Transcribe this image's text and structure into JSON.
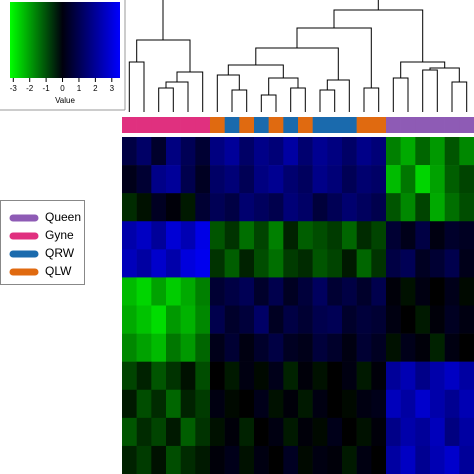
{
  "chart_data": {
    "type": "heatmap",
    "colorbar": {
      "label": "Value",
      "xlim": [
        -3.2,
        3.5
      ],
      "xticks": [
        -3,
        -2,
        -1,
        0,
        1,
        2,
        3
      ],
      "low_color": "#00ff00",
      "mid_color": "#000000",
      "high_color": "#0000ff"
    },
    "legend": [
      {
        "name": "Queen",
        "color": "#8e5bb5"
      },
      {
        "name": "Gyne",
        "color": "#e0307f"
      },
      {
        "name": "QRW",
        "color": "#1a6aad"
      },
      {
        "name": "QLW",
        "color": "#e06a10"
      }
    ],
    "column_groups": [
      1,
      1,
      1,
      1,
      1,
      1,
      3,
      2,
      3,
      2,
      3,
      2,
      3,
      2,
      2,
      2,
      3,
      3,
      0,
      0,
      0,
      0,
      0,
      0
    ],
    "values": [
      [
        0.8,
        1.2,
        0.5,
        1.5,
        1.0,
        0.6,
        1.5,
        1.8,
        1.2,
        1.6,
        1.4,
        1.9,
        1.3,
        1.7,
        1.5,
        1.2,
        1.6,
        1.4,
        -1.5,
        -2.0,
        -1.2,
        -1.8,
        -1.0,
        -1.6
      ],
      [
        0.3,
        0.6,
        1.6,
        1.8,
        0.9,
        0.4,
        1.2,
        1.4,
        1.0,
        1.5,
        1.7,
        1.3,
        1.1,
        1.6,
        1.4,
        1.0,
        1.3,
        1.2,
        -2.2,
        -1.4,
        -2.5,
        -1.9,
        -1.1,
        -0.8
      ],
      [
        -0.5,
        -0.2,
        0.4,
        0.1,
        -0.3,
        0.6,
        1.0,
        0.8,
        1.3,
        1.1,
        0.9,
        1.4,
        1.2,
        0.7,
        1.0,
        1.3,
        1.1,
        0.9,
        -1.0,
        -1.6,
        -0.8,
        -2.0,
        -1.3,
        -0.9
      ],
      [
        2.0,
        2.3,
        1.8,
        2.5,
        2.1,
        2.7,
        -1.0,
        -0.6,
        -1.3,
        -0.8,
        -1.5,
        -0.4,
        -1.1,
        -0.9,
        -0.7,
        -1.2,
        -0.5,
        -0.8,
        0.6,
        0.3,
        0.8,
        0.2,
        0.5,
        0.4
      ],
      [
        2.2,
        1.9,
        2.4,
        2.0,
        2.6,
        2.8,
        -0.6,
        -1.1,
        -0.4,
        -0.9,
        -1.3,
        -0.7,
        -0.5,
        -1.0,
        -0.8,
        -0.3,
        -1.2,
        -0.6,
        0.8,
        1.0,
        0.4,
        0.6,
        0.9,
        0.3
      ],
      [
        -2.2,
        -2.5,
        -1.9,
        -2.4,
        -2.0,
        -1.5,
        0.6,
        0.8,
        1.0,
        0.5,
        0.9,
        0.4,
        0.7,
        1.1,
        0.6,
        0.8,
        0.5,
        0.9,
        0.1,
        -0.2,
        0.2,
        0.0,
        0.3,
        -0.1
      ],
      [
        -2.0,
        -2.3,
        -2.6,
        -1.8,
        -2.1,
        -1.6,
        0.9,
        0.5,
        0.7,
        1.2,
        0.4,
        0.8,
        0.6,
        0.9,
        1.0,
        0.5,
        0.7,
        0.6,
        0.2,
        0.0,
        -0.3,
        0.1,
        0.4,
        0.2
      ],
      [
        -1.6,
        -1.9,
        -2.2,
        -1.4,
        -1.8,
        -1.2,
        0.3,
        0.6,
        0.2,
        0.5,
        0.8,
        0.4,
        0.3,
        0.7,
        0.5,
        0.2,
        0.6,
        0.4,
        -0.2,
        0.3,
        0.1,
        -0.4,
        0.2,
        0.0
      ],
      [
        -0.8,
        -0.4,
        -1.0,
        -0.6,
        -0.2,
        -0.9,
        0.0,
        -0.3,
        0.2,
        -0.1,
        0.3,
        -0.4,
        0.1,
        -0.2,
        0.0,
        0.2,
        -0.3,
        0.1,
        1.8,
        2.1,
        1.6,
        2.0,
        2.3,
        1.9
      ],
      [
        -0.3,
        -0.9,
        -0.5,
        -1.2,
        -0.4,
        -0.7,
        0.2,
        -0.1,
        0.0,
        0.3,
        -0.2,
        0.1,
        -0.3,
        0.2,
        0.0,
        -0.1,
        0.2,
        0.3,
        2.2,
        1.9,
        2.4,
        2.0,
        1.7,
        2.1
      ],
      [
        -1.0,
        -0.5,
        -0.8,
        -0.3,
        -1.1,
        -0.6,
        -0.2,
        0.1,
        -0.4,
        0.0,
        0.2,
        -0.3,
        0.1,
        -0.1,
        0.3,
        0.0,
        -0.2,
        0.1,
        1.6,
        2.0,
        1.8,
        2.2,
        1.5,
        1.9
      ],
      [
        -0.4,
        -0.7,
        -0.2,
        -0.9,
        -0.5,
        -0.3,
        0.1,
        0.3,
        -0.2,
        0.2,
        0.0,
        0.4,
        -0.1,
        0.2,
        0.1,
        -0.3,
        0.2,
        0.0,
        1.9,
        2.3,
        1.7,
        2.1,
        2.4,
        1.8
      ]
    ]
  }
}
